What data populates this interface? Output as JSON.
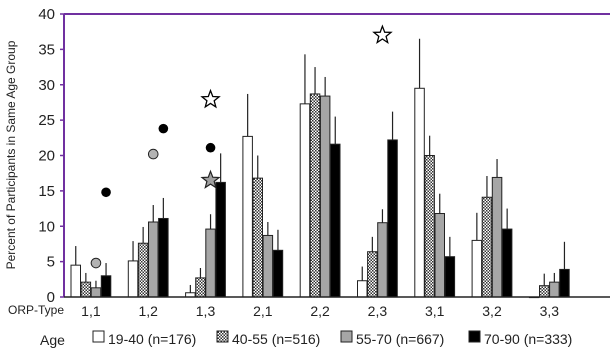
{
  "chart_data": {
    "type": "bar",
    "title": "",
    "ylabel": "Percent of Participants in Same Age Group",
    "xlabel": "ORP-Type",
    "legend_title": "Age",
    "legend_position": "bottom",
    "ylim": [
      0,
      40
    ],
    "yticks": [
      0,
      5,
      10,
      15,
      20,
      25,
      30,
      35,
      40
    ],
    "grid": false,
    "categories": [
      "1,1",
      "1,2",
      "1,3",
      "2,1",
      "2,2",
      "2,3",
      "3,1",
      "3,2",
      "3,3"
    ],
    "series": [
      {
        "name": "19-40 (n=176)",
        "fill": "white",
        "values": [
          4.5,
          5.1,
          0.6,
          22.7,
          27.3,
          2.3,
          29.5,
          8.0,
          0.0
        ],
        "error": [
          2.7,
          2.8,
          1.1,
          6.0,
          7.0,
          2.0,
          7.0,
          3.9,
          0.0
        ]
      },
      {
        "name": "40-55 (n=516)",
        "fill": "checker",
        "values": [
          2.1,
          7.6,
          2.7,
          16.8,
          28.7,
          6.4,
          20.0,
          14.1,
          1.6
        ],
        "error": [
          1.3,
          2.3,
          1.4,
          3.2,
          3.8,
          2.1,
          2.8,
          3.0,
          1.7
        ]
      },
      {
        "name": "55-70 (n=667)",
        "fill": "gray",
        "values": [
          1.3,
          10.6,
          9.6,
          8.7,
          28.4,
          10.5,
          11.8,
          16.9,
          2.1
        ],
        "error": [
          1.0,
          2.4,
          2.1,
          1.9,
          2.7,
          1.9,
          2.8,
          2.6,
          1.3
        ]
      },
      {
        "name": "70-90 (n=333)",
        "fill": "black",
        "values": [
          3.0,
          11.1,
          16.2,
          6.6,
          21.6,
          22.2,
          5.7,
          9.6,
          3.9
        ],
        "error": [
          1.8,
          2.9,
          4.1,
          2.9,
          3.9,
          4.0,
          2.8,
          2.9,
          3.9
        ]
      }
    ],
    "markers": [
      {
        "category": "1,1",
        "series": 3,
        "kind": "dot-black",
        "y": 14.8
      },
      {
        "category": "1,1",
        "series": 2,
        "kind": "dot-gray",
        "y": 4.8
      },
      {
        "category": "1,2",
        "series": 3,
        "kind": "dot-black",
        "y": 23.8
      },
      {
        "category": "1,2",
        "series": 2,
        "kind": "dot-gray",
        "y": 20.2
      },
      {
        "category": "1,3",
        "series": 2,
        "kind": "star-white",
        "y": 27.9
      },
      {
        "category": "1,3",
        "series": 2,
        "kind": "dot-black",
        "y": 21.1
      },
      {
        "category": "1,3",
        "series": 2,
        "kind": "star-gray",
        "y": 16.5
      },
      {
        "category": "2,3",
        "series": 2,
        "kind": "star-white",
        "y": 37.0
      }
    ]
  },
  "colors": {
    "axis": "#7030a0",
    "border": "#222222",
    "gray_fill": "#a6a6a6",
    "black_fill": "#000000"
  }
}
